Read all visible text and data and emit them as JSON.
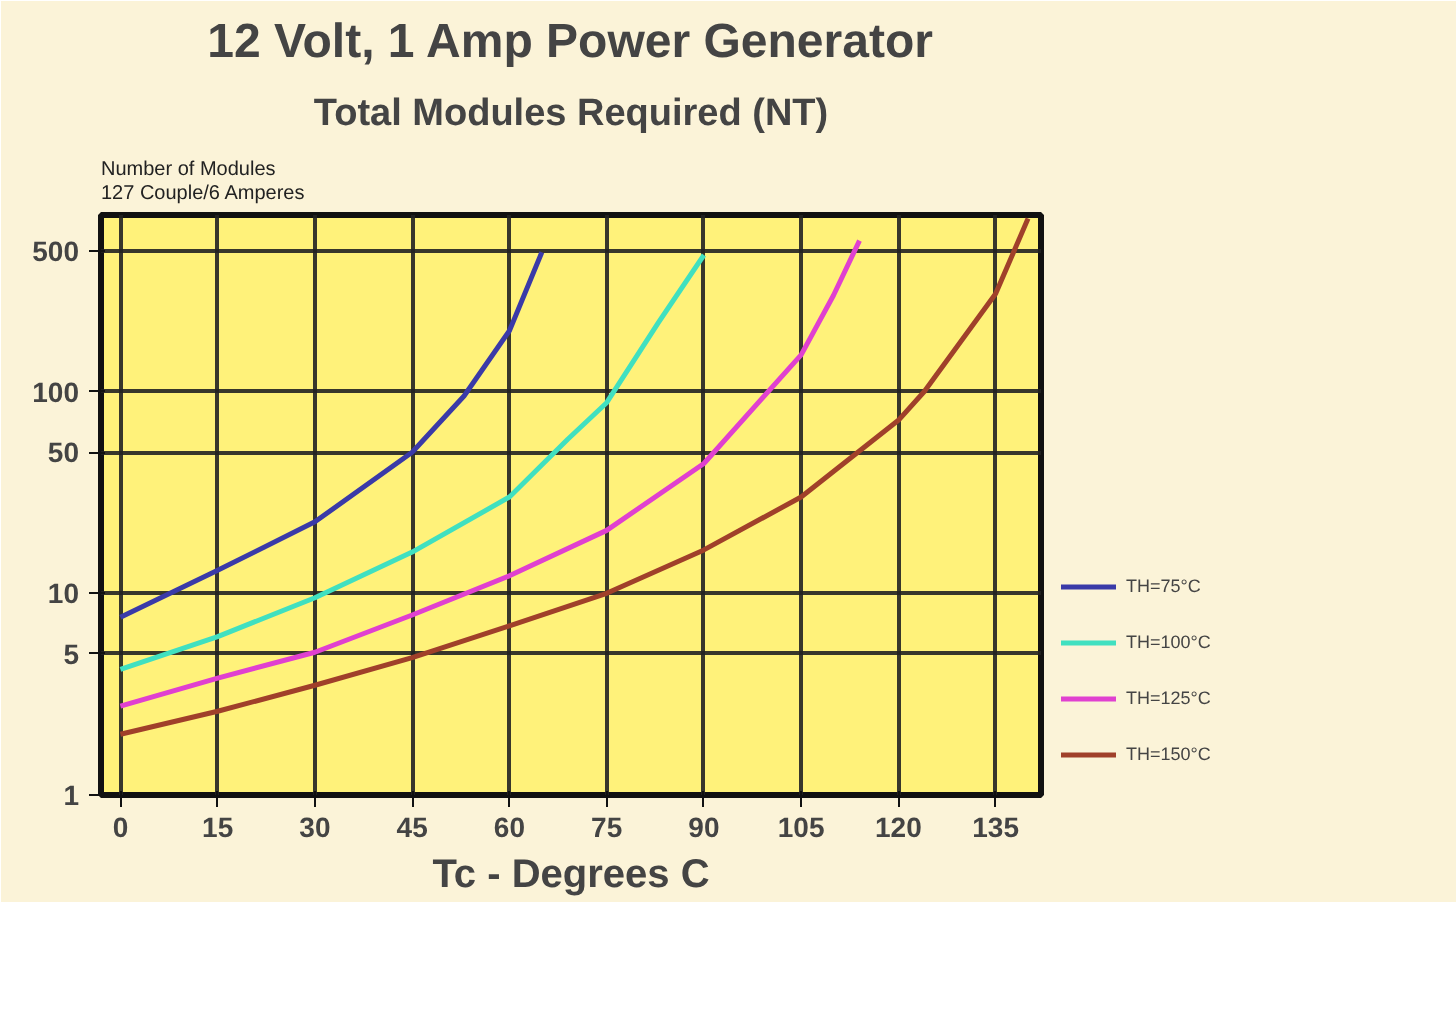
{
  "chart_data": {
    "type": "line",
    "title": "12 Volt, 1 Amp Power Generator",
    "subtitle": "Total Modules Required (NT)",
    "ylabel": "Number of Modules\n127 Couple/6 Amperes",
    "xlabel": "Tc - Degrees C",
    "log": "y",
    "grid": true,
    "legend": "bottom right",
    "line_style": "solid",
    "xlim": [
      -3,
      142
    ],
    "xticks": [
      0,
      15,
      30,
      45,
      60,
      75,
      90,
      105,
      120,
      135
    ],
    "ylim": [
      1,
      750
    ],
    "yticks": [
      1,
      5,
      10,
      50,
      100,
      500
    ],
    "series": [
      {
        "name": "TH=75°C",
        "color": "#3a3aa8",
        "x": [
          0,
          15,
          30,
          45,
          53,
          60,
          65
        ],
        "values": [
          7.6,
          13,
          22.6,
          50,
          95,
          200,
          490
        ]
      },
      {
        "name": "TH=100°C",
        "color": "#40e0c0",
        "x": [
          0,
          15,
          30,
          45,
          60,
          69,
          75,
          83,
          90
        ],
        "values": [
          4.2,
          6.1,
          9.5,
          16,
          30,
          58,
          88,
          220,
          475
        ]
      },
      {
        "name": "TH=125°C",
        "color": "#e040d0",
        "x": [
          0,
          15,
          30,
          45,
          60,
          75,
          90,
          105,
          110,
          114
        ],
        "values": [
          2.76,
          3.8,
          5.1,
          7.8,
          12.2,
          20.5,
          44,
          152,
          300,
          560
        ]
      },
      {
        "name": "TH=150°C",
        "color": "#a0402a",
        "x": [
          0,
          15,
          30,
          45,
          60,
          75,
          90,
          105,
          120,
          124,
          135,
          140
        ],
        "values": [
          2.0,
          2.6,
          3.5,
          4.8,
          6.9,
          10,
          16.4,
          30,
          72,
          100,
          305,
          720
        ]
      }
    ]
  }
}
